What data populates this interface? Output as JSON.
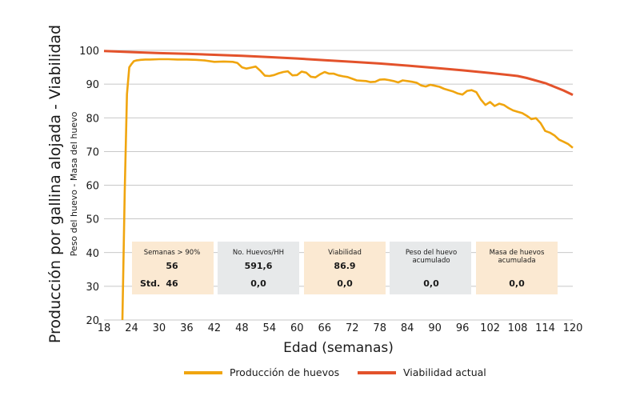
{
  "chart_data": {
    "type": "line",
    "ylabel": "Producción por gallina alojada - Viabilidad",
    "ylabel2": "Peso del huevo - Masa del huevo",
    "xlabel": "Edad (semanas)",
    "xlim": [
      18,
      120
    ],
    "ylim": [
      20,
      100
    ],
    "xticks": [
      18,
      24,
      30,
      36,
      42,
      48,
      54,
      60,
      66,
      72,
      78,
      84,
      90,
      96,
      102,
      108,
      114,
      120
    ],
    "yticks": [
      20,
      30,
      40,
      50,
      60,
      70,
      80,
      90,
      100
    ],
    "grid": true,
    "series": [
      {
        "name": "Producción de huevos",
        "color": "#F0A50F",
        "x": [
          22,
          22.5,
          23,
          23.5,
          24,
          24.5,
          25,
          26,
          27,
          28,
          30,
          32,
          34,
          36,
          38,
          40,
          42,
          44,
          46,
          47,
          48,
          49,
          50,
          51,
          52,
          53,
          54,
          55,
          56,
          57,
          58,
          59,
          60,
          61,
          62,
          63,
          64,
          65,
          66,
          67,
          68,
          69,
          70,
          71,
          72,
          73,
          74,
          75,
          76,
          77,
          78,
          79,
          80,
          81,
          82,
          83,
          84,
          85,
          86,
          87,
          88,
          89,
          90,
          91,
          92,
          93,
          94,
          95,
          96,
          97,
          98,
          99,
          100,
          101,
          102,
          103,
          104,
          105,
          106,
          107,
          108,
          109,
          110,
          111,
          112,
          113,
          114,
          115,
          116,
          117,
          118,
          119,
          120
        ],
        "y": [
          20,
          58,
          87,
          95,
          96,
          96.8,
          97,
          97.2,
          97.3,
          97.3,
          97.4,
          97.4,
          97.3,
          97.3,
          97.2,
          97,
          96.6,
          96.7,
          96.6,
          96.3,
          95,
          94.6,
          94.9,
          95.2,
          94,
          92.5,
          92.4,
          92.7,
          93.2,
          93.6,
          93.8,
          92.6,
          92.7,
          93.7,
          93.4,
          92.2,
          92,
          92.9,
          93.6,
          93.1,
          93.1,
          92.6,
          92.3,
          92.1,
          91.6,
          91.1,
          91,
          90.9,
          90.6,
          90.7,
          91.3,
          91.4,
          91.2,
          90.9,
          90.5,
          91.1,
          90.9,
          90.7,
          90.4,
          89.6,
          89.3,
          89.8,
          89.5,
          89.2,
          88.6,
          88.2,
          87.8,
          87.2,
          86.9,
          88,
          88.2,
          87.6,
          85.4,
          83.8,
          84.7,
          83.5,
          84.2,
          83.8,
          82.9,
          82.2,
          81.8,
          81.4,
          80.6,
          79.6,
          79.9,
          78.4,
          76.1,
          75.6,
          74.8,
          73.5,
          72.9,
          72.2,
          71.1
        ]
      },
      {
        "name": "Viabilidad actual",
        "color": "#E3522B",
        "x": [
          18,
          24,
          30,
          36,
          42,
          48,
          54,
          60,
          66,
          72,
          78,
          84,
          90,
          96,
          102,
          108,
          110,
          114,
          118,
          120
        ],
        "y": [
          99.8,
          99.5,
          99.2,
          99,
          98.7,
          98.4,
          98,
          97.6,
          97.1,
          96.6,
          96.1,
          95.5,
          94.8,
          94.1,
          93.3,
          92.4,
          91.8,
          90.3,
          88.1,
          86.8
        ]
      }
    ]
  },
  "info_boxes": [
    {
      "title": "Semanas > 90%",
      "value": "56",
      "std_label": "Std.",
      "std_value": "46",
      "bg": "#FBE9D2"
    },
    {
      "title": "No. Huevos/HH",
      "value": "591,6",
      "value2": "0,0",
      "bg": "#E7E9EA"
    },
    {
      "title": "Viabilidad",
      "value": "86.9",
      "value2": "0,0",
      "bg": "#FBE9D2"
    },
    {
      "title": "Peso del huevo acumulado",
      "value2": "0,0",
      "bg": "#E7E9EA"
    },
    {
      "title": "Masa de huevos acumulada",
      "value2": "0,0",
      "bg": "#FBE9D2"
    }
  ],
  "box_title_lines": {
    "peso": [
      "Peso del huevo",
      "acumulado"
    ],
    "masa": [
      "Masa de huevos",
      "acumulada"
    ]
  }
}
